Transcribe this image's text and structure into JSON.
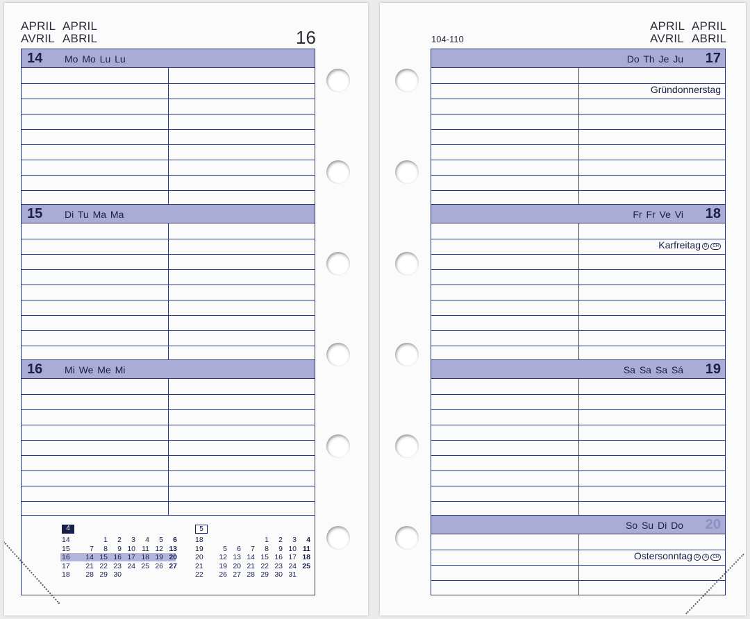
{
  "left_page": {
    "header_words": [
      "APRIL",
      "APRIL",
      "AVRIL",
      "ABRIL"
    ],
    "page_number": "16",
    "days": [
      {
        "num": "14",
        "names": "Mo Mo Lu Lu",
        "holiday": ""
      },
      {
        "num": "15",
        "names": "Di Tu Ma Ma",
        "holiday": ""
      },
      {
        "num": "16",
        "names": "Mi We Me Mi",
        "holiday": ""
      }
    ]
  },
  "right_page": {
    "code": "104-110",
    "header_words": [
      "APRIL",
      "APRIL",
      "AVRIL",
      "ABRIL"
    ],
    "days": [
      {
        "num": "17",
        "names": "Do Th Je Ju",
        "holiday": "Gründonnerstag",
        "tags": []
      },
      {
        "num": "18",
        "names": "Fr Fr Ve Vi",
        "holiday": "Karfreitag",
        "tags": [
          "D",
          "CH"
        ]
      },
      {
        "num": "19",
        "names": "Sa Sa Sa Sá",
        "holiday": "",
        "tags": []
      },
      {
        "num": "20",
        "names": "So Su Di Do",
        "holiday": "Ostersonntag",
        "tags": [
          "D",
          "A",
          "CH"
        ],
        "muted": true
      }
    ]
  },
  "mini_calendars": [
    {
      "month": "4",
      "style": "filled",
      "weeks": [
        {
          "wk": "14",
          "days": [
            "",
            "1",
            "2",
            "3",
            "4",
            "5",
            "6"
          ],
          "highlight": false
        },
        {
          "wk": "15",
          "days": [
            "7",
            "8",
            "9",
            "10",
            "11",
            "12",
            "13"
          ],
          "highlight": false
        },
        {
          "wk": "16",
          "days": [
            "14",
            "15",
            "16",
            "17",
            "18",
            "19",
            "20"
          ],
          "highlight": true
        },
        {
          "wk": "17",
          "days": [
            "21",
            "22",
            "23",
            "24",
            "25",
            "26",
            "27"
          ],
          "highlight": false
        },
        {
          "wk": "18",
          "days": [
            "28",
            "29",
            "30",
            "",
            "",
            "",
            ""
          ],
          "highlight": false
        }
      ]
    },
    {
      "month": "5",
      "style": "outline",
      "weeks": [
        {
          "wk": "18",
          "days": [
            "",
            "",
            "",
            "1",
            "2",
            "3",
            "4"
          ],
          "highlight": false
        },
        {
          "wk": "19",
          "days": [
            "5",
            "6",
            "7",
            "8",
            "9",
            "10",
            "11"
          ],
          "highlight": false
        },
        {
          "wk": "20",
          "days": [
            "12",
            "13",
            "14",
            "15",
            "16",
            "17",
            "18"
          ],
          "highlight": false
        },
        {
          "wk": "21",
          "days": [
            "19",
            "20",
            "21",
            "22",
            "23",
            "24",
            "25"
          ],
          "highlight": false
        },
        {
          "wk": "22",
          "days": [
            "26",
            "27",
            "28",
            "29",
            "30",
            "31",
            ""
          ],
          "highlight": false
        }
      ]
    }
  ]
}
